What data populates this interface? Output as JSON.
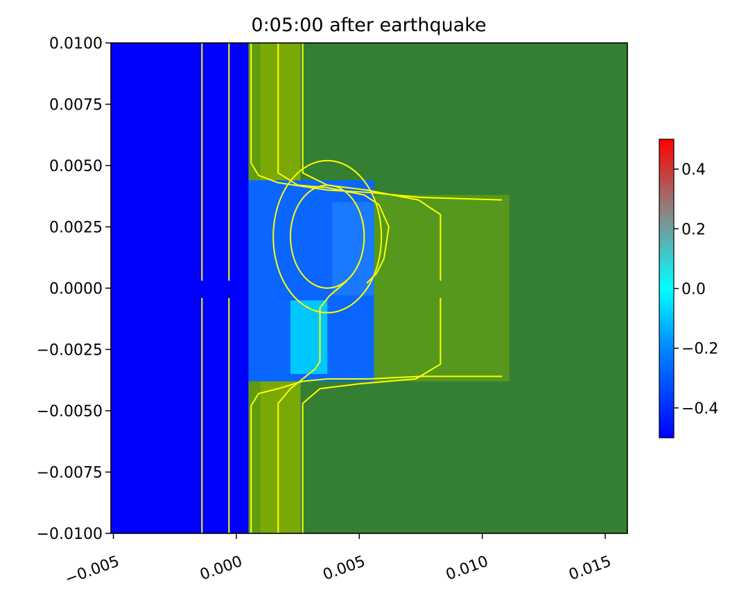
{
  "chart_data": {
    "type": "heatmap",
    "title": "0:05:00 after earthquake",
    "xlabel": "",
    "ylabel": "",
    "xlim": [
      -0.0051,
      0.0159
    ],
    "ylim": [
      -0.01,
      0.01
    ],
    "x_ticks": [
      -0.005,
      0.0,
      0.005,
      0.01,
      0.015
    ],
    "x_tick_labels": [
      "−0.005",
      "0.000",
      "0.005",
      "0.010",
      "0.015"
    ],
    "y_ticks": [
      0.01,
      0.0075,
      0.005,
      0.0025,
      0.0,
      -0.0025,
      -0.005,
      -0.0075,
      -0.01
    ],
    "y_tick_labels": [
      "0.0100",
      "0.0075",
      "0.0050",
      "0.0025",
      "0.0000",
      "−0.0025",
      "−0.0050",
      "−0.0075",
      "−0.0100"
    ],
    "colorbar": {
      "range": [
        -0.5,
        0.5
      ],
      "ticks": [
        0.4,
        0.2,
        0.0,
        -0.2,
        -0.4
      ],
      "tick_labels": [
        "0.4",
        "0.2",
        "0.0",
        "−0.2",
        "−0.4"
      ]
    },
    "colors": {
      "deep": "#0000fe",
      "land": "#357f32",
      "shelf": "#7aa805",
      "contour": "#ffff00"
    },
    "regions": [
      {
        "name": "deep-water",
        "x": [
          -0.0051,
          0.0005
        ],
        "y": [
          -0.01,
          0.01
        ],
        "value": -0.5,
        "color": "#0000fe"
      },
      {
        "name": "land",
        "x": [
          0.0026,
          0.0159
        ],
        "y": [
          -0.01,
          0.01
        ],
        "color": "#357f32"
      },
      {
        "name": "shelf-strip-1",
        "x": [
          0.0005,
          0.001
        ],
        "y": [
          -0.01,
          0.01
        ],
        "color": "#5f9c10"
      },
      {
        "name": "shelf-strip-2",
        "x": [
          0.001,
          0.0026
        ],
        "y": [
          -0.01,
          0.01
        ],
        "color": "#7aa805"
      },
      {
        "name": "bay-shelf",
        "x": [
          0.0026,
          0.0111
        ],
        "y": [
          -0.0038,
          0.0038
        ],
        "color": "#55981d"
      },
      {
        "name": "bay-water",
        "x": [
          0.0005,
          0.0056
        ],
        "y": [
          -0.0038,
          0.0044
        ],
        "value": -0.3,
        "color": "#0a66ff"
      },
      {
        "name": "bay-shallow",
        "x": [
          0.0022,
          0.0037
        ],
        "y": [
          -0.0035,
          -0.0005
        ],
        "value": -0.1,
        "color": "#00c8ff"
      },
      {
        "name": "bay-gradient",
        "x": [
          0.0039,
          0.0056
        ],
        "y": [
          -0.0003,
          0.0035
        ],
        "value": -0.25,
        "color": "#1a7aff"
      }
    ],
    "contours": [
      {
        "name": "contour-deep-1",
        "points": [
          [
            -0.0014,
            0.01
          ],
          [
            -0.0014,
            0.0003
          ]
        ]
      },
      {
        "name": "contour-deep-1b",
        "points": [
          [
            -0.0014,
            -0.0004
          ],
          [
            -0.0014,
            -0.01
          ]
        ]
      },
      {
        "name": "contour-deep-2",
        "points": [
          [
            -0.0003,
            0.01
          ],
          [
            -0.0003,
            0.0003
          ]
        ]
      },
      {
        "name": "contour-deep-2b",
        "points": [
          [
            -0.0003,
            -0.0004
          ],
          [
            -0.0003,
            -0.01
          ]
        ]
      },
      {
        "name": "contour-upper-1",
        "points": [
          [
            0.0006,
            0.01
          ],
          [
            0.0006,
            0.0051
          ],
          [
            0.0009,
            0.0046
          ],
          [
            0.0017,
            0.0043
          ],
          [
            0.0037,
            0.004
          ],
          [
            0.0054,
            0.0039
          ],
          [
            0.0075,
            0.0037
          ],
          [
            0.0108,
            0.0036
          ]
        ]
      },
      {
        "name": "contour-upper-2",
        "points": [
          [
            0.0017,
            0.01
          ],
          [
            0.0017,
            0.0047
          ],
          [
            0.0025,
            0.0042
          ],
          [
            0.0037,
            0.0041
          ],
          [
            0.0052,
            0.0038
          ],
          [
            0.0058,
            0.0034
          ],
          [
            0.0062,
            0.0025
          ],
          [
            0.006,
            0.0012
          ],
          [
            0.0057,
            0.0006
          ],
          [
            0.0053,
            0.0002
          ]
        ]
      },
      {
        "name": "contour-upper-3",
        "points": [
          [
            0.0027,
            0.01
          ],
          [
            0.0027,
            0.0047
          ],
          [
            0.0037,
            0.0042
          ],
          [
            0.0053,
            0.004
          ],
          [
            0.0074,
            0.0036
          ],
          [
            0.0083,
            0.003
          ],
          [
            0.0083,
            0.0003
          ]
        ]
      },
      {
        "name": "contour-lower-1",
        "points": [
          [
            0.0006,
            -0.01
          ],
          [
            0.0006,
            -0.0048
          ],
          [
            0.0009,
            -0.0043
          ],
          [
            0.0017,
            -0.0041
          ],
          [
            0.0027,
            -0.0038
          ],
          [
            0.0037,
            -0.0037
          ],
          [
            0.0054,
            -0.0037
          ],
          [
            0.0075,
            -0.0036
          ],
          [
            0.0108,
            -0.0036
          ]
        ]
      },
      {
        "name": "contour-lower-2",
        "points": [
          [
            0.0017,
            -0.01
          ],
          [
            0.0017,
            -0.0047
          ],
          [
            0.0022,
            -0.0041
          ],
          [
            0.0032,
            -0.0033
          ],
          [
            0.0034,
            -0.003
          ],
          [
            0.0034,
            -0.0008
          ],
          [
            0.0038,
            -0.0003
          ],
          [
            0.0045,
            0.0003
          ]
        ]
      },
      {
        "name": "contour-lower-3",
        "points": [
          [
            0.0027,
            -0.01
          ],
          [
            0.0027,
            -0.0047
          ],
          [
            0.0034,
            -0.0041
          ],
          [
            0.005,
            -0.0039
          ],
          [
            0.0073,
            -0.0037
          ],
          [
            0.0083,
            -0.0031
          ],
          [
            0.0083,
            -0.0004
          ]
        ]
      }
    ],
    "rings": [
      {
        "name": "ring-inner",
        "cx": 0.0037,
        "cy": 0.0021,
        "rx": 0.0015,
        "ry": 0.0021
      },
      {
        "name": "ring-outer",
        "cx": 0.0037,
        "cy": 0.0021,
        "rx": 0.0022,
        "ry": 0.0031
      }
    ]
  }
}
